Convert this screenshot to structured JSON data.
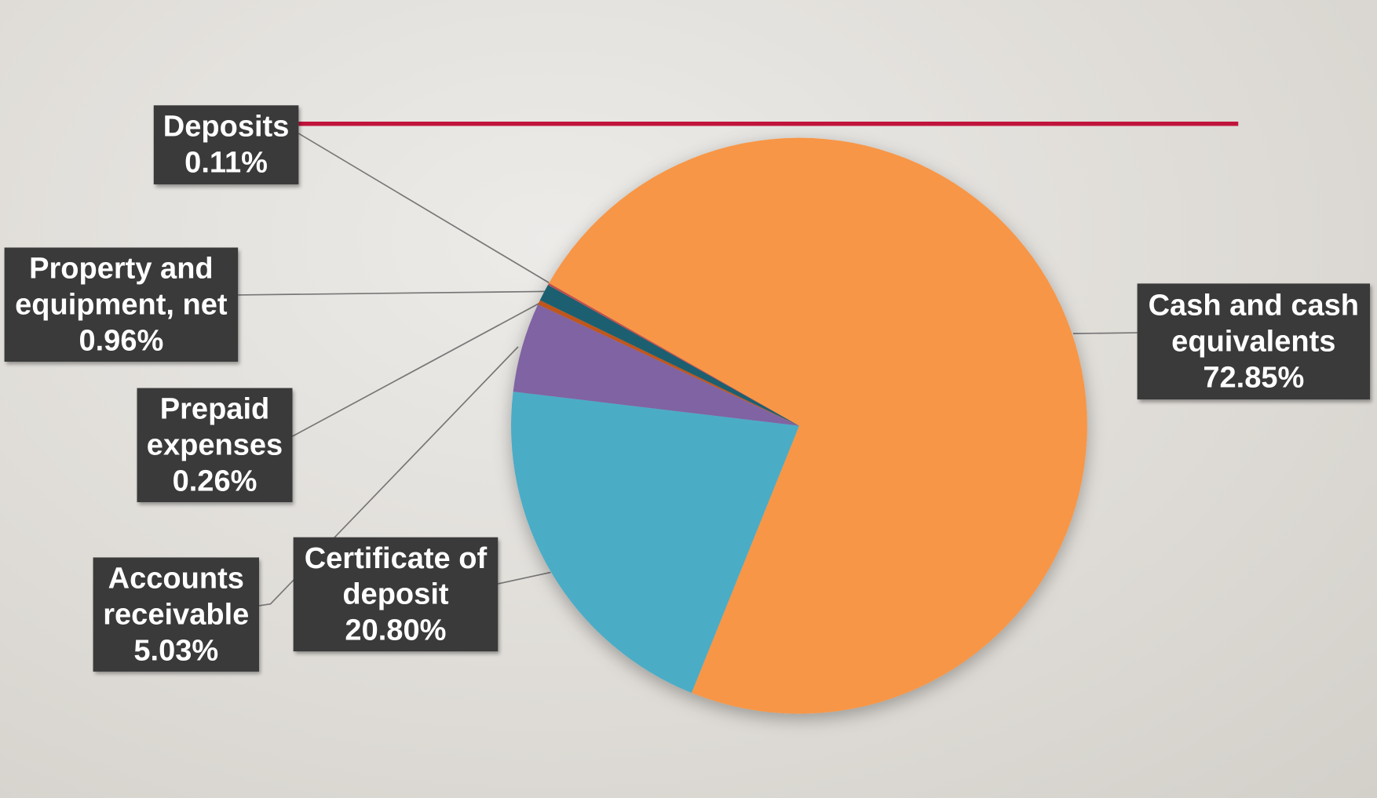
{
  "chart_data": {
    "type": "pie",
    "categories": [
      "Cash and cash equivalents",
      "Certificate of deposit",
      "Accounts receivable",
      "Prepaid expenses",
      "Property and equipment, net",
      "Deposits"
    ],
    "values": [
      72.85,
      20.8,
      5.03,
      0.26,
      0.96,
      0.11
    ],
    "value_labels": [
      "72.85%",
      "20.80%",
      "5.03%",
      "0.26%",
      "0.96%",
      "0.11%"
    ],
    "colors": [
      "#f79646",
      "#4bacc6",
      "#8064a2",
      "#c0571c",
      "#1f5f6f",
      "#c0504d"
    ]
  }
}
